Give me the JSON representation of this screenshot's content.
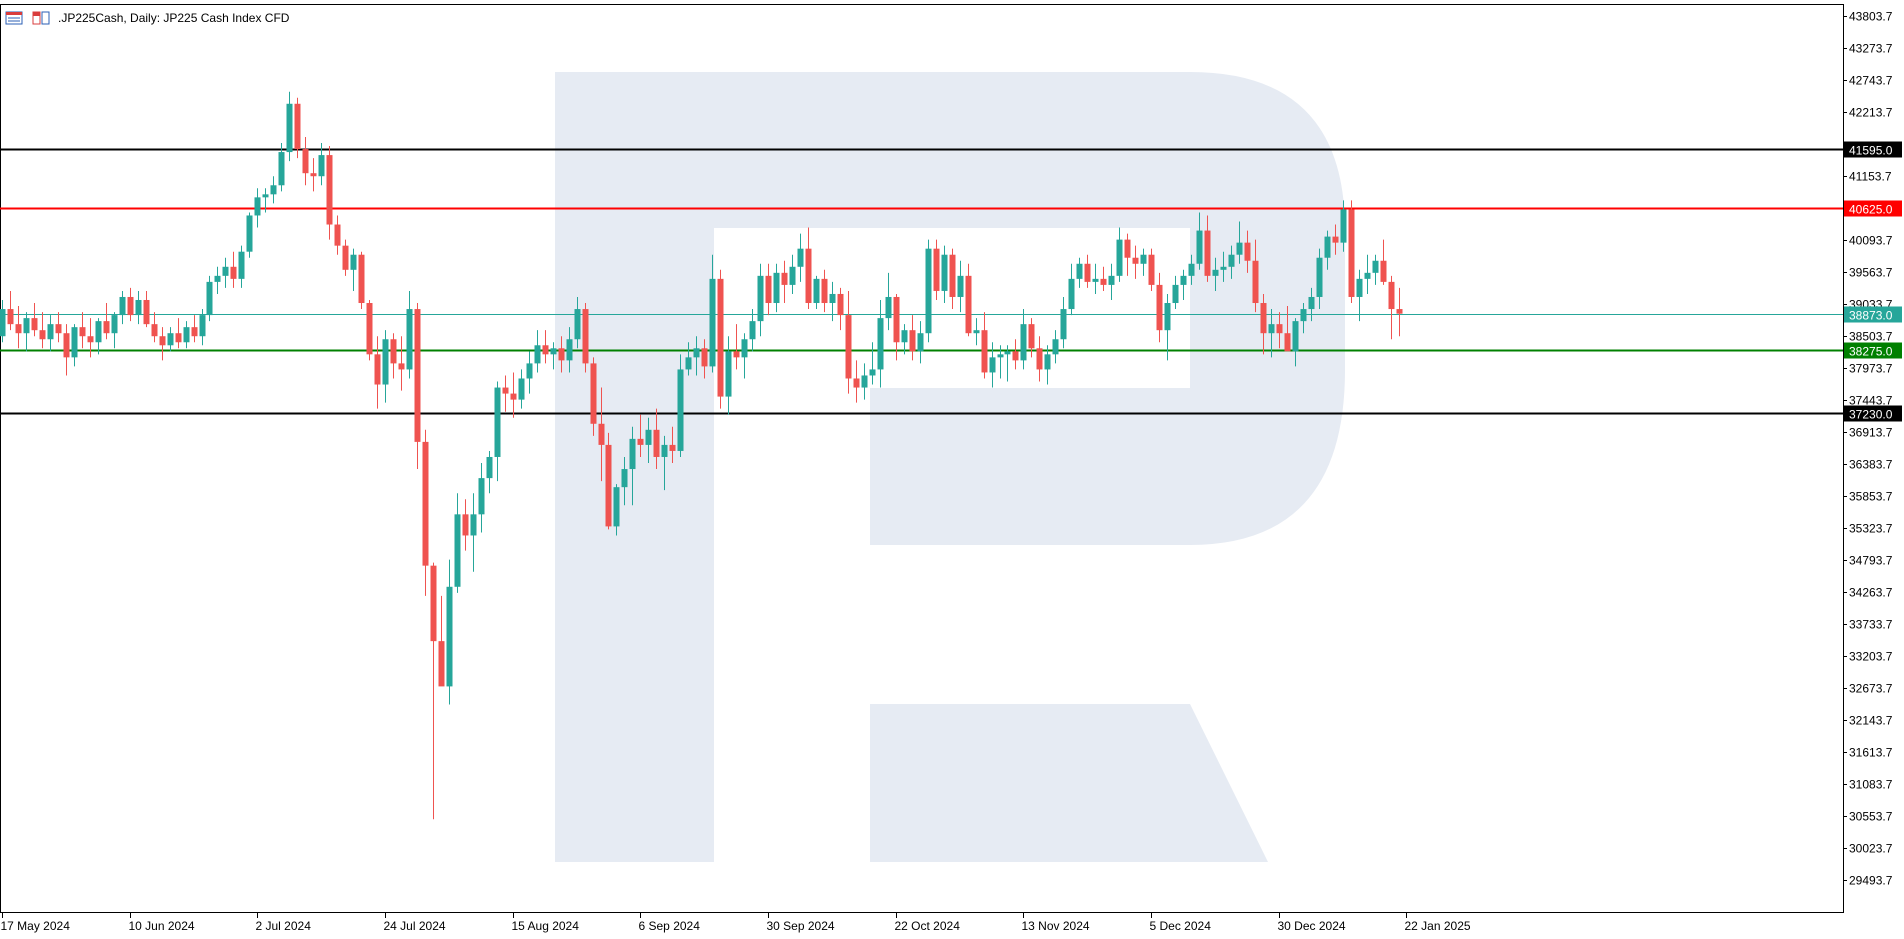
{
  "header": {
    "symbol_text": ".JP225Cash, Daily:  JP225 Cash Index CFD",
    "icons": [
      "data-window-icon",
      "trade-panel-icon"
    ]
  },
  "colors": {
    "bull": "#26a69a",
    "bear": "#ef5350",
    "resistance": "#ff0000",
    "support": "#008000",
    "extreme_level": "#000000",
    "current_price": "#26a69a",
    "watermark": "#e6ebf3"
  },
  "chart_data": {
    "type": "candlestick",
    "title": ".JP225Cash, Daily:  JP225 Cash Index CFD",
    "ylim": [
      29200,
      44000
    ],
    "y_ticks": [
      "43803.7",
      "43273.7",
      "42743.7",
      "42213.7",
      "41153.7",
      "40093.7",
      "39563.7",
      "39033.7",
      "38503.7",
      "37973.7",
      "37443.7",
      "36913.7",
      "36383.7",
      "35853.7",
      "35323.7",
      "34793.7",
      "34263.7",
      "33733.7",
      "33203.7",
      "32673.7",
      "32143.7",
      "31613.7",
      "31083.7",
      "30553.7",
      "30023.7",
      "29493.7"
    ],
    "x_labels": [
      "17 May 2024",
      "10 Jun 2024",
      "2 Jul 2024",
      "24 Jul 2024",
      "15 Aug 2024",
      "6 Sep 2024",
      "30 Sep 2024",
      "22 Oct 2024",
      "13 Nov 2024",
      "5 Dec 2024",
      "30 Dec 2024",
      "22 Jan 2025"
    ],
    "x_label_index": [
      0,
      16,
      32,
      48,
      64,
      80,
      96,
      112,
      128,
      144,
      160,
      176
    ],
    "levels": [
      {
        "value": 41595.0,
        "label": "41595.0",
        "role": "extreme_level"
      },
      {
        "value": 40625.0,
        "label": "40625.0",
        "role": "resistance"
      },
      {
        "value": 38873.0,
        "label": "38873.0",
        "role": "current_price"
      },
      {
        "value": 38275.0,
        "label": "38275.0",
        "role": "support"
      },
      {
        "value": 37230.0,
        "label": "37230.0",
        "role": "extreme_level"
      }
    ],
    "candles": [
      [
        38500,
        39100,
        38400,
        38950
      ],
      [
        38950,
        39250,
        38600,
        38700
      ],
      [
        38700,
        39000,
        38300,
        38550
      ],
      [
        38550,
        38900,
        38250,
        38800
      ],
      [
        38800,
        39050,
        38500,
        38600
      ],
      [
        38600,
        38900,
        38300,
        38450
      ],
      [
        38450,
        38850,
        38250,
        38700
      ],
      [
        38700,
        38900,
        38400,
        38550
      ],
      [
        38550,
        38700,
        37850,
        38150
      ],
      [
        38150,
        38700,
        38000,
        38650
      ],
      [
        38650,
        38900,
        38300,
        38500
      ],
      [
        38500,
        38800,
        38150,
        38400
      ],
      [
        38400,
        38800,
        38200,
        38750
      ],
      [
        38750,
        39050,
        38450,
        38550
      ],
      [
        38550,
        38900,
        38300,
        38850
      ],
      [
        38850,
        39250,
        38700,
        39150
      ],
      [
        39150,
        39300,
        38750,
        38850
      ],
      [
        38850,
        39250,
        38700,
        39100
      ],
      [
        39100,
        39250,
        38650,
        38700
      ],
      [
        38700,
        38900,
        38400,
        38500
      ],
      [
        38500,
        38650,
        38100,
        38350
      ],
      [
        38350,
        38650,
        38250,
        38550
      ],
      [
        38550,
        38800,
        38300,
        38400
      ],
      [
        38400,
        38750,
        38300,
        38650
      ],
      [
        38650,
        38850,
        38400,
        38500
      ],
      [
        38500,
        38950,
        38350,
        38850
      ],
      [
        38850,
        39500,
        38750,
        39400
      ],
      [
        39400,
        39650,
        39200,
        39500
      ],
      [
        39500,
        39800,
        39300,
        39650
      ],
      [
        39650,
        39900,
        39300,
        39450
      ],
      [
        39450,
        40000,
        39300,
        39900
      ],
      [
        39900,
        40550,
        39800,
        40500
      ],
      [
        40500,
        40950,
        40300,
        40800
      ],
      [
        40800,
        40950,
        40550,
        40850
      ],
      [
        40850,
        41150,
        40700,
        41000
      ],
      [
        41000,
        41700,
        40900,
        41550
      ],
      [
        41550,
        42550,
        41400,
        42350
      ],
      [
        42350,
        42450,
        41450,
        41600
      ],
      [
        41600,
        41800,
        41000,
        41200
      ],
      [
        41200,
        41450,
        40900,
        41150
      ],
      [
        41150,
        41700,
        41000,
        41500
      ],
      [
        41500,
        41650,
        40100,
        40350
      ],
      [
        40350,
        40500,
        39850,
        40000
      ],
      [
        40000,
        40100,
        39500,
        39600
      ],
      [
        39600,
        39950,
        39250,
        39850
      ],
      [
        39850,
        39900,
        38950,
        39050
      ],
      [
        39050,
        39100,
        38100,
        38200
      ],
      [
        38200,
        38500,
        37300,
        37700
      ],
      [
        37700,
        38600,
        37400,
        38450
      ],
      [
        38450,
        38550,
        37800,
        38050
      ],
      [
        38050,
        38500,
        37600,
        37950
      ],
      [
        37950,
        39250,
        37800,
        38950
      ],
      [
        38950,
        39050,
        36300,
        36750
      ],
      [
        36750,
        36950,
        34200,
        34700
      ],
      [
        34700,
        34750,
        30500,
        33450
      ],
      [
        33450,
        34200,
        32800,
        32700
      ],
      [
        32700,
        34800,
        32400,
        34350
      ],
      [
        34350,
        35900,
        34250,
        35550
      ],
      [
        35550,
        35800,
        34950,
        35200
      ],
      [
        35200,
        35900,
        34600,
        35550
      ],
      [
        35550,
        36400,
        35250,
        36150
      ],
      [
        36150,
        36600,
        35900,
        36500
      ],
      [
        36500,
        37750,
        36100,
        37650
      ],
      [
        37650,
        37850,
        37250,
        37550
      ],
      [
        37550,
        37900,
        37150,
        37450
      ],
      [
        37450,
        37950,
        37300,
        37800
      ],
      [
        37800,
        38250,
        37550,
        38050
      ],
      [
        38050,
        38600,
        37900,
        38350
      ],
      [
        38350,
        38600,
        38050,
        38200
      ],
      [
        38200,
        38400,
        37950,
        38300
      ],
      [
        38300,
        38500,
        37900,
        38100
      ],
      [
        38100,
        38650,
        37900,
        38450
      ],
      [
        38450,
        39150,
        38300,
        38950
      ],
      [
        38950,
        39050,
        37900,
        38050
      ],
      [
        38050,
        38150,
        36850,
        37050
      ],
      [
        37050,
        37650,
        36100,
        36700
      ],
      [
        36700,
        36900,
        35300,
        35350
      ],
      [
        35350,
        36050,
        35200,
        36000
      ],
      [
        36000,
        36500,
        35700,
        36300
      ],
      [
        36300,
        37000,
        35700,
        36800
      ],
      [
        36800,
        37200,
        36500,
        36700
      ],
      [
        36700,
        37150,
        36400,
        36950
      ],
      [
        36950,
        37300,
        36300,
        36500
      ],
      [
        36500,
        36850,
        35950,
        36700
      ],
      [
        36700,
        37000,
        36400,
        36600
      ],
      [
        36600,
        38200,
        36500,
        37950
      ],
      [
        37950,
        38400,
        37850,
        38150
      ],
      [
        38150,
        38500,
        37850,
        38300
      ],
      [
        38300,
        38450,
        37800,
        38000
      ],
      [
        38000,
        39850,
        37900,
        39450
      ],
      [
        39450,
        39600,
        37300,
        37500
      ],
      [
        37500,
        38500,
        37200,
        38250
      ],
      [
        38250,
        38700,
        37950,
        38150
      ],
      [
        38150,
        38550,
        37800,
        38450
      ],
      [
        38450,
        38950,
        38250,
        38750
      ],
      [
        38750,
        39700,
        38500,
        39500
      ],
      [
        39500,
        39700,
        38850,
        39050
      ],
      [
        39050,
        39700,
        38900,
        39550
      ],
      [
        39550,
        39750,
        39050,
        39350
      ],
      [
        39350,
        39850,
        39200,
        39650
      ],
      [
        39650,
        40200,
        39400,
        39950
      ],
      [
        39950,
        40300,
        38950,
        39050
      ],
      [
        39050,
        39500,
        38950,
        39450
      ],
      [
        39450,
        39600,
        38900,
        39050
      ],
      [
        39050,
        39400,
        38750,
        39200
      ],
      [
        39200,
        39300,
        38600,
        38850
      ],
      [
        38850,
        39250,
        37550,
        37800
      ],
      [
        37800,
        38100,
        37400,
        37650
      ],
      [
        37650,
        38050,
        37450,
        37850
      ],
      [
        37850,
        38400,
        37700,
        37950
      ],
      [
        37950,
        39100,
        37650,
        38800
      ],
      [
        38800,
        39550,
        38600,
        39150
      ],
      [
        39150,
        39200,
        38100,
        38400
      ],
      [
        38400,
        38700,
        38200,
        38600
      ],
      [
        38600,
        38850,
        38100,
        38250
      ],
      [
        38250,
        38750,
        38050,
        38550
      ],
      [
        38550,
        40100,
        38400,
        39950
      ],
      [
        39950,
        40100,
        39100,
        39250
      ],
      [
        39250,
        40000,
        39050,
        39850
      ],
      [
        39850,
        39950,
        38950,
        39150
      ],
      [
        39150,
        39750,
        38900,
        39500
      ],
      [
        39500,
        39700,
        38500,
        38550
      ],
      [
        38550,
        38800,
        38350,
        38600
      ],
      [
        38600,
        38900,
        37800,
        37900
      ],
      [
        37900,
        38400,
        37650,
        38150
      ],
      [
        38150,
        38350,
        37800,
        38200
      ],
      [
        38200,
        38350,
        37750,
        38250
      ],
      [
        38250,
        38450,
        37950,
        38100
      ],
      [
        38100,
        38950,
        37950,
        38700
      ],
      [
        38700,
        38800,
        38150,
        38300
      ],
      [
        38300,
        38500,
        37750,
        37950
      ],
      [
        37950,
        38350,
        37700,
        38200
      ],
      [
        38200,
        38600,
        38050,
        38450
      ],
      [
        38450,
        39150,
        38300,
        38950
      ],
      [
        38950,
        39700,
        38850,
        39450
      ],
      [
        39450,
        39800,
        39300,
        39700
      ],
      [
        39700,
        39850,
        39300,
        39400
      ],
      [
        39400,
        39700,
        39200,
        39450
      ],
      [
        39450,
        39650,
        39250,
        39350
      ],
      [
        39350,
        39700,
        39100,
        39500
      ],
      [
        39500,
        40300,
        39400,
        40100
      ],
      [
        40100,
        40200,
        39500,
        39800
      ],
      [
        39800,
        40000,
        39450,
        39700
      ],
      [
        39700,
        39950,
        39500,
        39850
      ],
      [
        39850,
        39950,
        39250,
        39350
      ],
      [
        39350,
        39550,
        38400,
        38600
      ],
      [
        38600,
        39200,
        38100,
        39050
      ],
      [
        39050,
        39500,
        38950,
        39350
      ],
      [
        39350,
        39600,
        39100,
        39500
      ],
      [
        39500,
        39850,
        39350,
        39700
      ],
      [
        39700,
        40550,
        39600,
        40250
      ],
      [
        40250,
        40500,
        39400,
        39500
      ],
      [
        39500,
        39800,
        39250,
        39600
      ],
      [
        39600,
        39900,
        39400,
        39650
      ],
      [
        39650,
        40000,
        39450,
        39850
      ],
      [
        39850,
        40400,
        39700,
        40050
      ],
      [
        40050,
        40250,
        39550,
        39750
      ],
      [
        39750,
        40100,
        38900,
        39050
      ],
      [
        39050,
        39200,
        38200,
        38550
      ],
      [
        38550,
        38950,
        38150,
        38700
      ],
      [
        38700,
        38900,
        38300,
        38550
      ],
      [
        38550,
        39000,
        38300,
        38250
      ],
      [
        38250,
        38800,
        38000,
        38750
      ],
      [
        38750,
        39050,
        38550,
        38950
      ],
      [
        38950,
        39300,
        38750,
        39150
      ],
      [
        39150,
        39950,
        38950,
        39800
      ],
      [
        39800,
        40250,
        39600,
        40150
      ],
      [
        40150,
        40350,
        39850,
        40050
      ],
      [
        40050,
        40750,
        39900,
        40600
      ],
      [
        40600,
        40750,
        39050,
        39150
      ],
      [
        39150,
        39600,
        38750,
        39450
      ],
      [
        39450,
        39850,
        39200,
        39550
      ],
      [
        39550,
        39850,
        39350,
        39750
      ],
      [
        39750,
        40100,
        39350,
        39400
      ],
      [
        39400,
        39500,
        38450,
        38950
      ],
      [
        38950,
        39300,
        38500,
        38873
      ]
    ]
  }
}
